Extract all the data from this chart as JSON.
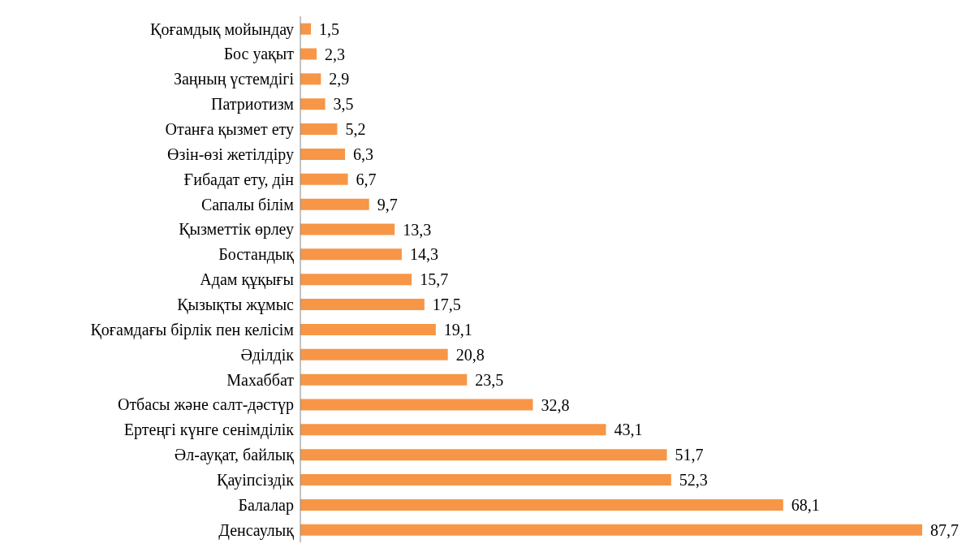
{
  "chart_data": {
    "type": "bar",
    "orientation": "horizontal",
    "categories": [
      "Қоғамдық мойындау",
      "Бос уақыт",
      "Заңның үстемдігі",
      "Патриотизм",
      "Отанға қызмет ету",
      "Өзін-өзі жетілдіру",
      "Ғибадат ету, дін",
      "Сапалы білім",
      "Қызметтік өрлеу",
      "Бостандық",
      "Адам құқығы",
      "Қызықты жұмыс",
      "Қоғамдағы бірлік пен келісім",
      "Әділдік",
      "Махаббат",
      "Отбасы және салт-дәстүр",
      "Ертеңгі күнге сенімділік",
      "Әл-ауқат, байлық",
      "Қауіпсіздік",
      "Балалар",
      "Денсаулық"
    ],
    "values": [
      1.5,
      2.3,
      2.9,
      3.5,
      5.2,
      6.3,
      6.7,
      9.7,
      13.3,
      14.3,
      15.7,
      17.5,
      19.1,
      20.8,
      23.5,
      32.8,
      43.1,
      51.7,
      52.3,
      68.1,
      87.7
    ],
    "value_labels": [
      "1,5",
      "2,3",
      "2,9",
      "3,5",
      "5,2",
      "6,3",
      "6,7",
      "9,7",
      "13,3",
      "14,3",
      "15,7",
      "17,5",
      "19,1",
      "20,8",
      "23,5",
      "32,8",
      "43,1",
      "51,7",
      "52,3",
      "68,1",
      "87,7"
    ],
    "color": "#f79646",
    "grid": false,
    "legend": false
  }
}
